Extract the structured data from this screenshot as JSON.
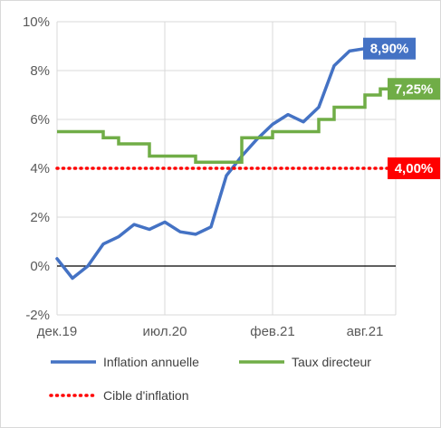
{
  "chart_data": {
    "type": "line",
    "title": "",
    "xlabel": "",
    "ylabel": "",
    "ylim": [
      -2,
      10
    ],
    "y_ticks": [
      "10%",
      "8%",
      "6%",
      "4%",
      "2%",
      "0%",
      "-2%"
    ],
    "y_tick_values": [
      10,
      8,
      6,
      4,
      2,
      0,
      -2
    ],
    "x_tick_labels": [
      "дек.19",
      "июл.20",
      "фев.21",
      "авг.21"
    ],
    "x_tick_months": [
      0,
      7,
      14,
      20
    ],
    "x_range_months": [
      0,
      22
    ],
    "grid": "vertical and horizontal",
    "legend_placement": "bottom",
    "series": [
      {
        "name": "Inflation annuelle",
        "color": "#4472c4",
        "style": "line",
        "x_months": [
          0,
          1,
          2,
          3,
          4,
          5,
          6,
          7,
          8,
          9,
          10,
          11,
          12,
          13,
          14,
          15,
          16,
          17,
          18,
          19,
          20
        ],
        "values": [
          0.3,
          -0.5,
          0.0,
          0.9,
          1.2,
          1.7,
          1.5,
          1.8,
          1.4,
          1.3,
          1.6,
          3.7,
          4.5,
          5.2,
          5.8,
          6.2,
          5.9,
          6.5,
          8.2,
          8.8,
          8.9
        ]
      },
      {
        "name": "Taux directeur",
        "color": "#70ad47",
        "style": "step",
        "x_months": [
          0,
          1,
          2,
          3,
          4,
          5,
          6,
          7,
          8,
          9,
          10,
          11,
          12,
          13,
          14,
          15,
          16,
          17,
          18,
          19,
          20,
          21,
          22
        ],
        "values": [
          5.5,
          5.5,
          5.5,
          5.25,
          5.0,
          5.0,
          4.5,
          4.5,
          4.5,
          4.25,
          4.25,
          4.25,
          5.25,
          5.25,
          5.5,
          5.5,
          5.5,
          6.0,
          6.5,
          6.5,
          7.0,
          7.25,
          7.25
        ]
      },
      {
        "name": "Cible d'inflation",
        "color": "#ff0000",
        "style": "dotted",
        "x_months": [
          0,
          22
        ],
        "values": [
          4.0,
          4.0
        ]
      }
    ],
    "end_labels": [
      {
        "series": "Inflation annuelle",
        "text": "8,90%",
        "value": 8.9,
        "bg": "#4472c4"
      },
      {
        "series": "Taux directeur",
        "text": "7,25%",
        "value": 7.25,
        "bg": "#70ad47"
      },
      {
        "series": "Cible d'inflation",
        "text": "4,00%",
        "value": 4.0,
        "bg": "#ff0000"
      }
    ]
  }
}
